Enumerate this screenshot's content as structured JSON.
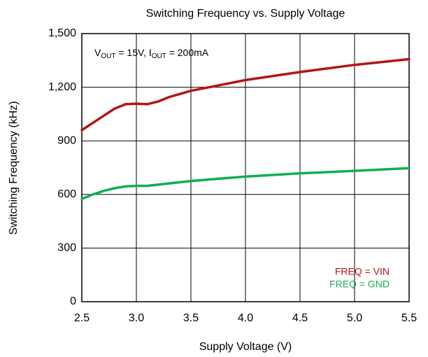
{
  "chart_data": {
    "type": "line",
    "title": "Switching Frequency vs. Supply Voltage",
    "x_label": "Supply Voltage (V)",
    "y_label": "Switching Frequency (kHz)",
    "annotation": [
      {
        "text": "V"
      },
      {
        "text": "OUT",
        "sub": true
      },
      {
        "text": " = 15V, I"
      },
      {
        "text": "OUT",
        "sub": true
      },
      {
        "text": " = 200mA"
      }
    ],
    "x": [
      2.5,
      2.6,
      2.7,
      2.8,
      2.9,
      3.0,
      3.1,
      3.2,
      3.3,
      3.5,
      3.75,
      4.0,
      4.5,
      5.0,
      5.5
    ],
    "series": [
      {
        "name": "FREQ = VIN",
        "color": "#b41414",
        "values": [
          960,
          1000,
          1040,
          1080,
          1105,
          1108,
          1105,
          1120,
          1145,
          1180,
          1210,
          1240,
          1285,
          1325,
          1357
        ]
      },
      {
        "name": "FREQ = GND",
        "color": "#0fb050",
        "values": [
          575,
          600,
          620,
          635,
          645,
          648,
          648,
          655,
          662,
          675,
          688,
          700,
          718,
          732,
          747
        ]
      }
    ],
    "xlim": [
      2.5,
      5.5
    ],
    "xticks": [
      2.5,
      {
        "value": 3,
        "label": "3.0"
      },
      3.5,
      {
        "value": 4,
        "label": "4.0"
      },
      4.5,
      {
        "value": 5,
        "label": "5.0"
      },
      5.5
    ],
    "ylim": [
      0,
      1500
    ],
    "yticks": [
      0,
      300,
      600,
      900,
      {
        "value": 1200,
        "label": "1,200"
      },
      {
        "value": 1500,
        "label": "1,500"
      }
    ],
    "grid": true,
    "legend": "lower right"
  }
}
